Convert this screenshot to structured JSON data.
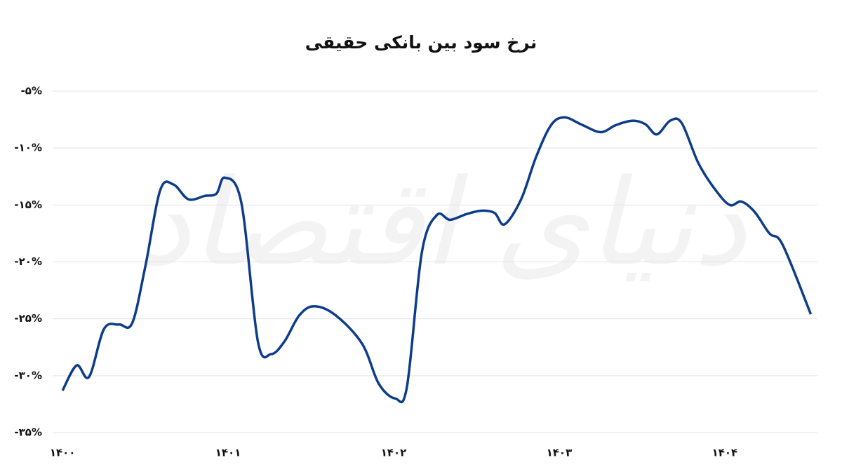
{
  "chart_data": {
    "type": "line",
    "title": "نرخ سود بین بانکی حقیقی",
    "watermark": "دنیای اقتصاد",
    "x": [
      1400.0,
      1400.085,
      1400.16,
      1400.25,
      1400.34,
      1400.42,
      1400.5,
      1400.59,
      1400.67,
      1400.76,
      1400.86,
      1400.93,
      1400.98,
      1401.08,
      1401.18,
      1401.26,
      1401.34,
      1401.43,
      1401.52,
      1401.65,
      1401.81,
      1401.91,
      1402.01,
      1402.08,
      1402.17,
      1402.26,
      1402.34,
      1402.44,
      1402.53,
      1402.61,
      1402.67,
      1402.77,
      1402.86,
      1402.95,
      1403.03,
      1403.13,
      1403.25,
      1403.34,
      1403.44,
      1403.52,
      1403.59,
      1403.67,
      1403.74,
      1403.84,
      1403.94,
      1404.03,
      1404.1,
      1404.18,
      1404.27,
      1404.35,
      1404.52
    ],
    "series": [
      {
        "name": "نرخ سود بین بانکی حقیقی",
        "color": "#0d3d8a",
        "values": [
          -31.3,
          -29.1,
          -30.1,
          -25.9,
          -25.5,
          -25.4,
          -20.4,
          -13.7,
          -13.2,
          -14.5,
          -14.2,
          -14.0,
          -12.6,
          -14.8,
          -27.0,
          -28.1,
          -27.0,
          -24.7,
          -23.9,
          -24.7,
          -27.2,
          -30.7,
          -32.0,
          -31.0,
          -19.2,
          -15.9,
          -16.3,
          -15.8,
          -15.5,
          -15.7,
          -16.7,
          -14.5,
          -10.8,
          -8.0,
          -7.3,
          -7.9,
          -8.6,
          -8.0,
          -7.6,
          -7.9,
          -8.8,
          -7.6,
          -7.8,
          -11.3,
          -13.6,
          -15.0,
          -14.7,
          -15.6,
          -17.5,
          -18.5,
          -24.6
        ]
      }
    ],
    "xlim": [
      1399.94,
      1404.56
    ],
    "xticks": [
      {
        "value": 1400,
        "label": "۱۴۰۰"
      },
      {
        "value": 1401,
        "label": "۱۴۰۱"
      },
      {
        "value": 1402,
        "label": "۱۴۰۲"
      },
      {
        "value": 1403,
        "label": "۱۴۰۳"
      },
      {
        "value": 1404,
        "label": "۱۴۰۴"
      }
    ],
    "ylim": [
      -35,
      -5
    ],
    "yticks": [
      {
        "value": -5,
        "label": "-۵%"
      },
      {
        "value": -10,
        "label": "-۱۰%"
      },
      {
        "value": -15,
        "label": "-۱۵%"
      },
      {
        "value": -20,
        "label": "-۲۰%"
      },
      {
        "value": -25,
        "label": "-۲۵%"
      },
      {
        "value": -30,
        "label": "-۳۰%"
      },
      {
        "value": -35,
        "label": "-۳۵%"
      }
    ],
    "grid": true
  }
}
